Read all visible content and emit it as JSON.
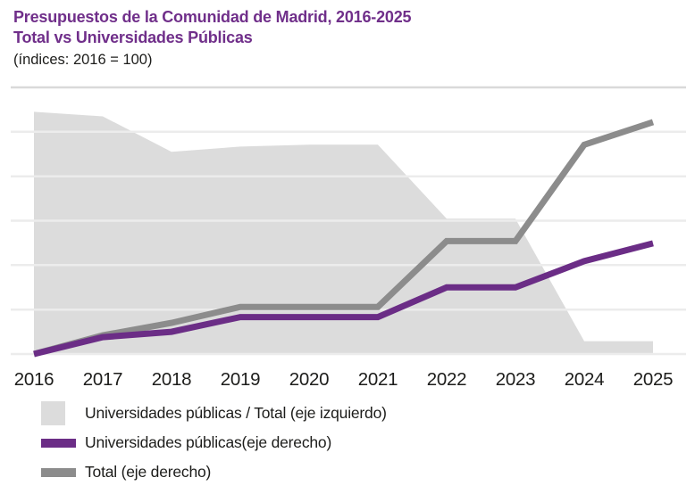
{
  "header": {
    "title_line1": "Presupuestos de la Comunidad de Madrid, 2016-2025",
    "title_line2": "Total vs Universidades Públicas",
    "subtitle": "(índices: 2016 = 100)"
  },
  "colors": {
    "title": "#702f8a",
    "purple_line": "#6b2d86",
    "gray_line": "#8c8c8c",
    "area_fill": "#dcdcdc",
    "gridline": "#ececec",
    "top_gridline": "#d9d9d9",
    "text": "#1d1d1b"
  },
  "chart_data": {
    "type": "area",
    "title": "Presupuestos de la Comunidad de Madrid, 2016-2025",
    "subtitle": "Total vs Universidades Públicas",
    "note": "(índices: 2016 = 100)",
    "x": [
      2016,
      2017,
      2018,
      2019,
      2020,
      2021,
      2022,
      2023,
      2024,
      2025
    ],
    "series": [
      {
        "name": "Universidades públicas / Total (eje izquierdo)",
        "type": "area",
        "axis": "left",
        "values": [
          100,
          99.65,
          96.9,
          97.3,
          97.45,
          97.45,
          91.7,
          91.7,
          82.2,
          82.2
        ]
      },
      {
        "name": "Universidades públicas (eje derecho)",
        "type": "line",
        "axis": "right",
        "values": [
          100,
          103.8,
          105,
          108.3,
          108.3,
          108.3,
          115,
          115,
          120.9,
          124.9
        ]
      },
      {
        "name": "Total (eje derecho)",
        "type": "line",
        "axis": "right",
        "values": [
          100,
          104.2,
          107,
          110.6,
          110.6,
          110.6,
          125.4,
          125.4,
          147.1,
          152.2
        ]
      }
    ],
    "right_axis": {
      "min": 100,
      "max": 160,
      "gridline_step": 10,
      "labels_visible": false
    },
    "left_axis": {
      "min": 81.2,
      "max": 101.9,
      "labels_visible": false
    },
    "grid": true,
    "legend_position": "bottom"
  },
  "legend": {
    "items": [
      {
        "label": "Universidades públicas / Total (eje izquierdo)",
        "swatch": "area",
        "color": "#dcdcdc"
      },
      {
        "label": "Universidades públicas(eje derecho)",
        "swatch": "line",
        "color": "#6b2d86"
      },
      {
        "label": "Total (eje derecho)",
        "swatch": "line",
        "color": "#8c8c8c"
      }
    ]
  }
}
